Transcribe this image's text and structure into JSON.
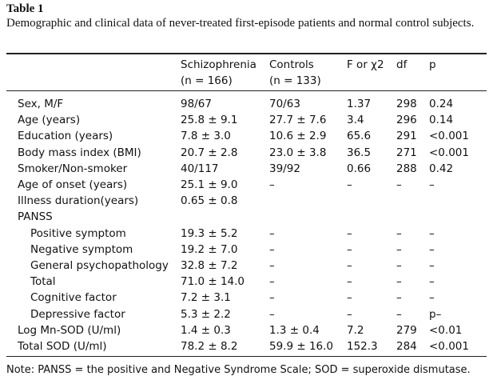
{
  "table_label": "Table 1",
  "caption": "Demographic and clinical data of never-treated first-episode patients and normal control subjects.",
  "table": {
    "headers": [
      "Schizophrenia",
      "Controls",
      "F or χ2",
      "df",
      "p"
    ],
    "subheaders": [
      "(n = 166)",
      "(n = 133)"
    ],
    "rows": [
      [
        "Sex, M/F",
        "98/67",
        "70/63",
        "1.37",
        "298",
        "0.24"
      ],
      [
        "Age (years)",
        "25.8 ± 9.1",
        "27.7 ± 7.6",
        "3.4",
        "296",
        "0.14"
      ],
      [
        "Education (years)",
        "7.8 ± 3.0",
        "10.6 ± 2.9",
        "65.6",
        "291",
        "<0.001"
      ],
      [
        "Body mass index (BMI)",
        "20.7 ± 2.8",
        "23.0 ± 3.8",
        "36.5",
        "271",
        "<0.001"
      ],
      [
        "Smoker/Non-smoker",
        "40/117",
        "39/92",
        "0.66",
        "288",
        "0.42"
      ],
      [
        "Age of onset (years)",
        "25.1 ± 9.0",
        "–",
        "–",
        "–",
        "–"
      ],
      [
        "Illness duration(years)",
        "0.65 ± 0.8",
        null,
        null,
        null,
        null
      ],
      {
        "label": "PANSS",
        "rows": [
          [
            "Positive symptom",
            "19.3 ± 5.2",
            "–",
            "–",
            "–",
            "–"
          ],
          [
            "Negative symptom",
            "19.2 ± 7.0",
            "–",
            "–",
            "–",
            "–"
          ],
          [
            "General psychopathology",
            "32.8 ± 7.2",
            "–",
            "–",
            "–",
            "–"
          ],
          [
            "Total",
            "71.0 ± 14.0",
            "–",
            "–",
            "–",
            "–"
          ],
          [
            "Cognitive factor",
            "7.2 ± 3.1",
            "–",
            "–",
            "–",
            "–"
          ],
          [
            "Depressive factor",
            "5.3 ± 2.2",
            "–",
            "–",
            "–",
            "p–"
          ]
        ]
      },
      [
        "Log Mn-SOD (U/ml)",
        "1.4 ± 0.3",
        "1.3 ± 0.4",
        "7.2",
        "279",
        "<0.01"
      ],
      [
        "Total SOD (U/ml)",
        "78.2 ± 8.2",
        "59.9 ± 16.0",
        "152.3",
        "284",
        "<0.001"
      ]
    ]
  },
  "note": "Note: PANSS = the positive and Negative Syndrome Scale; SOD = superoxide dismutase."
}
